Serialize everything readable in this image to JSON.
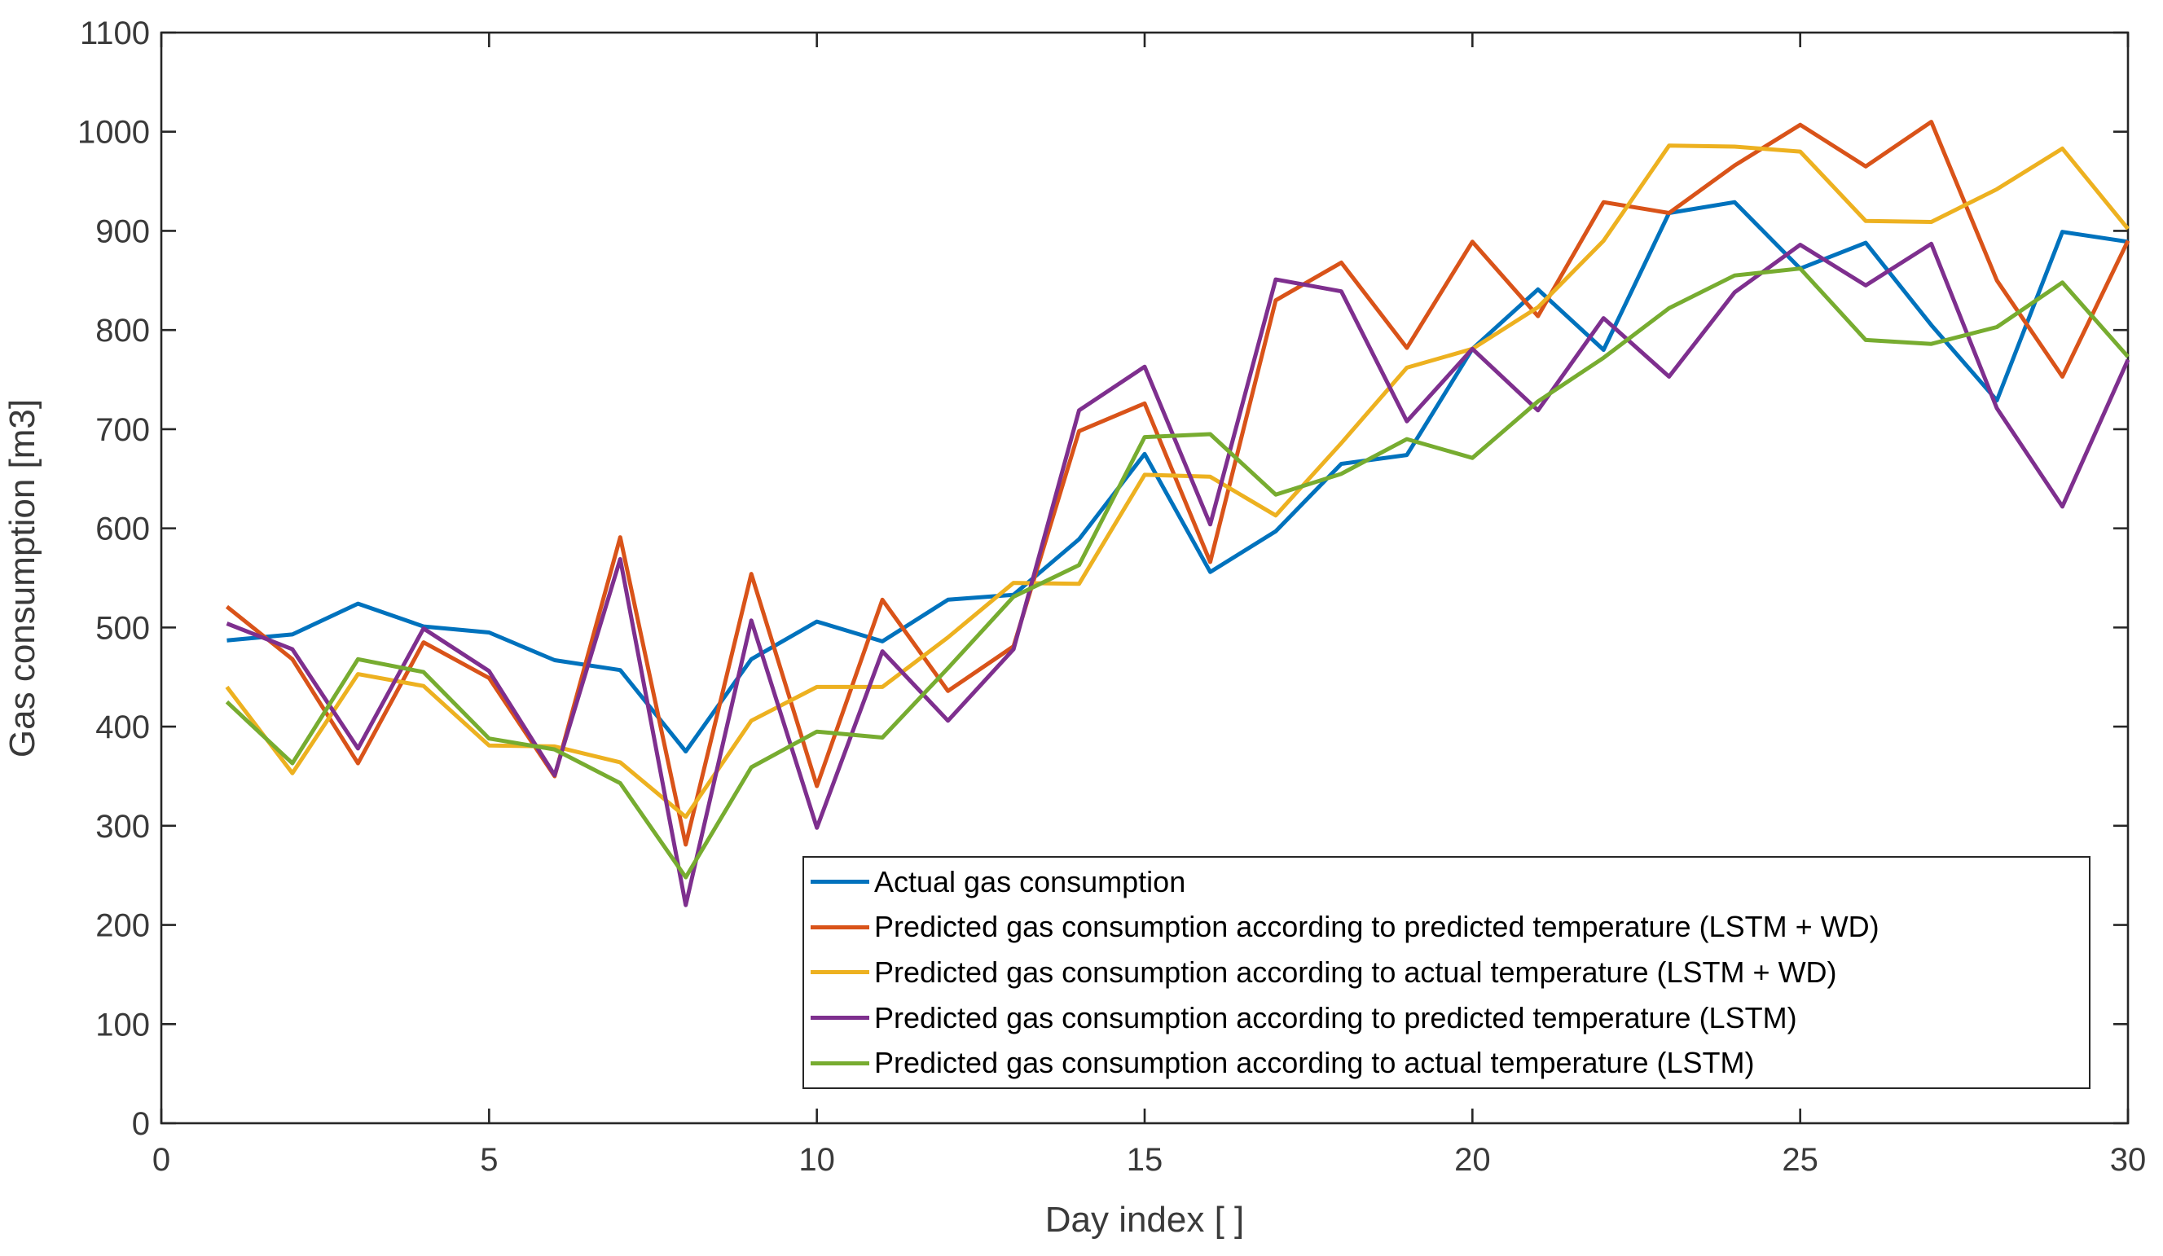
{
  "chart_data": {
    "type": "line",
    "title": "",
    "xlabel": "Day index [ ]",
    "ylabel": "Gas consumption [m3]",
    "xlim": [
      0,
      30
    ],
    "ylim": [
      0,
      1100
    ],
    "xticks": [
      0,
      5,
      10,
      15,
      20,
      25,
      30
    ],
    "yticks": [
      0,
      100,
      200,
      300,
      400,
      500,
      600,
      700,
      800,
      900,
      1000,
      1100
    ],
    "grid": false,
    "legend_position": "inside-bottom-center",
    "x": [
      1,
      2,
      3,
      4,
      5,
      6,
      7,
      8,
      9,
      10,
      11,
      12,
      13,
      14,
      15,
      16,
      17,
      18,
      19,
      20,
      21,
      22,
      23,
      24,
      25,
      26,
      27,
      28,
      29,
      30
    ],
    "series": [
      {
        "name": "Actual gas consumption",
        "color": "#0072BD",
        "values": [
          487,
          493,
          524,
          501,
          495,
          467,
          457,
          375,
          468,
          506,
          486,
          528,
          533,
          589,
          675,
          556,
          597,
          665,
          674,
          781,
          841,
          780,
          918,
          929,
          862,
          888,
          805,
          729,
          899,
          889
        ]
      },
      {
        "name": "Predicted gas consumption according to predicted temperature (LSTM + WD)",
        "color": "#D95319",
        "values": [
          521,
          468,
          363,
          485,
          449,
          350,
          591,
          281,
          554,
          340,
          528,
          436,
          481,
          698,
          726,
          566,
          830,
          868,
          782,
          889,
          814,
          929,
          918,
          966,
          1007,
          965,
          1010,
          850,
          753,
          890
        ]
      },
      {
        "name": "Predicted gas consumption according to actual temperature (LSTM + WD)",
        "color": "#EDB120",
        "values": [
          440,
          353,
          453,
          441,
          381,
          380,
          364,
          309,
          406,
          440,
          440,
          490,
          545,
          544,
          654,
          652,
          613,
          686,
          762,
          781,
          823,
          890,
          986,
          985,
          980,
          910,
          909,
          942,
          983,
          902
        ]
      },
      {
        "name": "Predicted gas consumption according to predicted temperature (LSTM)",
        "color": "#7E2F8E",
        "values": [
          504,
          478,
          378,
          499,
          456,
          351,
          569,
          220,
          507,
          298,
          476,
          406,
          478,
          719,
          763,
          604,
          851,
          839,
          708,
          781,
          719,
          812,
          753,
          838,
          886,
          845,
          887,
          721,
          622,
          770
        ]
      },
      {
        "name": "Predicted gas consumption according to actual temperature (LSTM)",
        "color": "#77AC30",
        "values": [
          425,
          363,
          468,
          455,
          388,
          377,
          343,
          248,
          359,
          395,
          389,
          459,
          531,
          563,
          692,
          695,
          634,
          655,
          690,
          671,
          728,
          772,
          822,
          855,
          862,
          790,
          786,
          803,
          848,
          773
        ]
      }
    ]
  }
}
